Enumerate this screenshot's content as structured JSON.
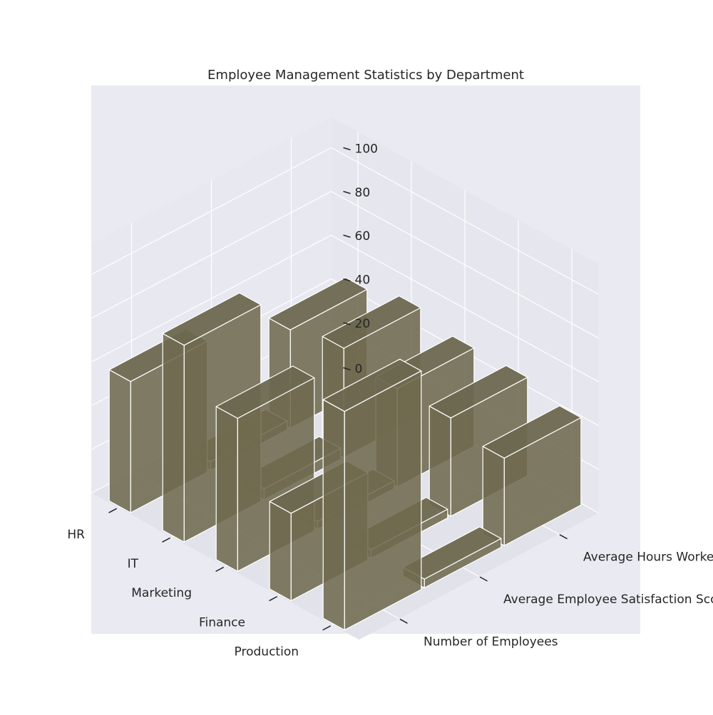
{
  "chart_data": {
    "type": "bar",
    "title": "Employee Management Statistics by Department",
    "categories": [
      "Production",
      "Finance",
      "Marketing",
      "IT",
      "HR"
    ],
    "series": [
      {
        "name": "Number of Employees",
        "values": [
          100,
          40,
          70,
          90,
          60
        ]
      },
      {
        "name": "Average Employee Satisfaction Score",
        "values": [
          4,
          4,
          3.5,
          5,
          4
        ]
      },
      {
        "name": "Average Hours Worked Weekly",
        "values": [
          40,
          45,
          45,
          50,
          45
        ]
      }
    ],
    "zlim": [
      0,
      100
    ],
    "z_ticks": [
      "0",
      "20",
      "40",
      "60",
      "80",
      "100"
    ],
    "grid": true,
    "legend": "none",
    "colors": {
      "bar_face": "#6f6a4f",
      "bar_edge": "#ffffff",
      "panel": "#eaeaf2",
      "grid": "#ffffff",
      "text": "#262626"
    }
  }
}
